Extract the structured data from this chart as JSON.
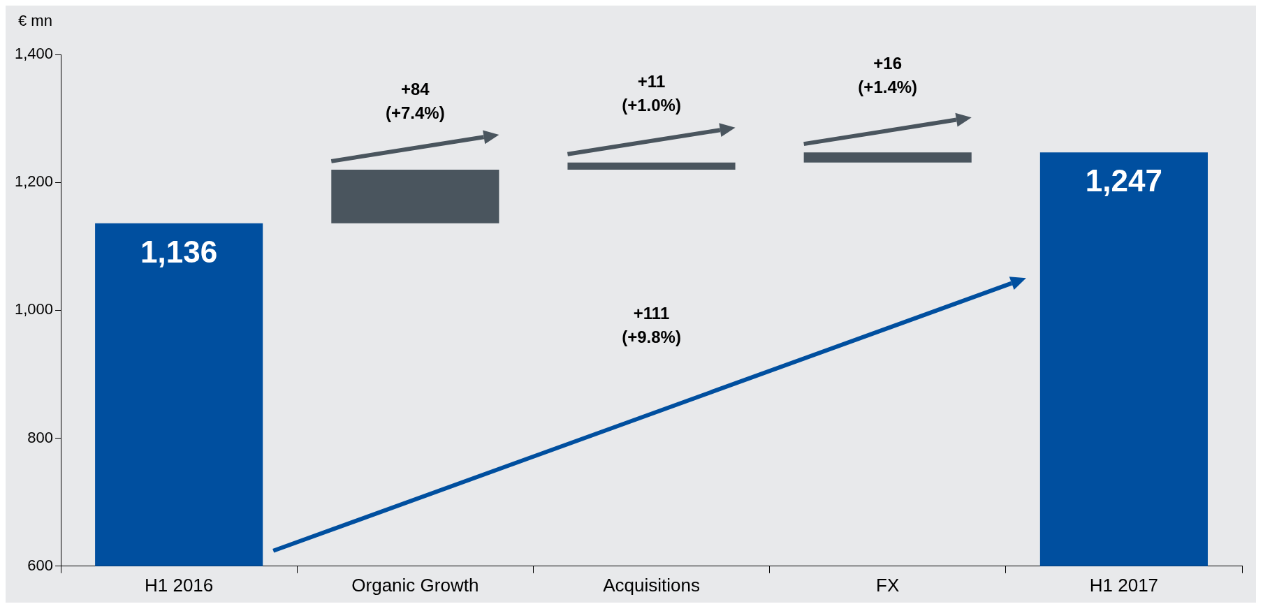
{
  "chart_data": {
    "type": "bar",
    "ylabel": "€ mn",
    "categories": [
      "H1 2016",
      "Organic Growth",
      "Acquisitions",
      "FX",
      "H1 2017"
    ],
    "values": [
      1136,
      84,
      11,
      16,
      1247
    ],
    "base": [
      null,
      1136,
      1220,
      1231,
      null
    ],
    "colors": [
      "#004f9f",
      "#4a555e",
      "#4a555e",
      "#4a555e",
      "#004f9f"
    ],
    "value_labels": [
      "1,136",
      null,
      null,
      null,
      "1,247"
    ],
    "ylim": [
      600,
      1400
    ],
    "yticks": [
      600,
      800,
      {
        "value": 1000,
        "label": "1,000"
      },
      {
        "value": 1200,
        "label": "1,200"
      },
      {
        "value": 1400,
        "label": "1,400"
      }
    ],
    "grid": false,
    "legend": false,
    "annotations": [
      "+84\n(+7.4%)",
      "+11\n(+1.0%)",
      "+16\n(+1.4%)",
      "+111\n(+9.8%)"
    ]
  }
}
